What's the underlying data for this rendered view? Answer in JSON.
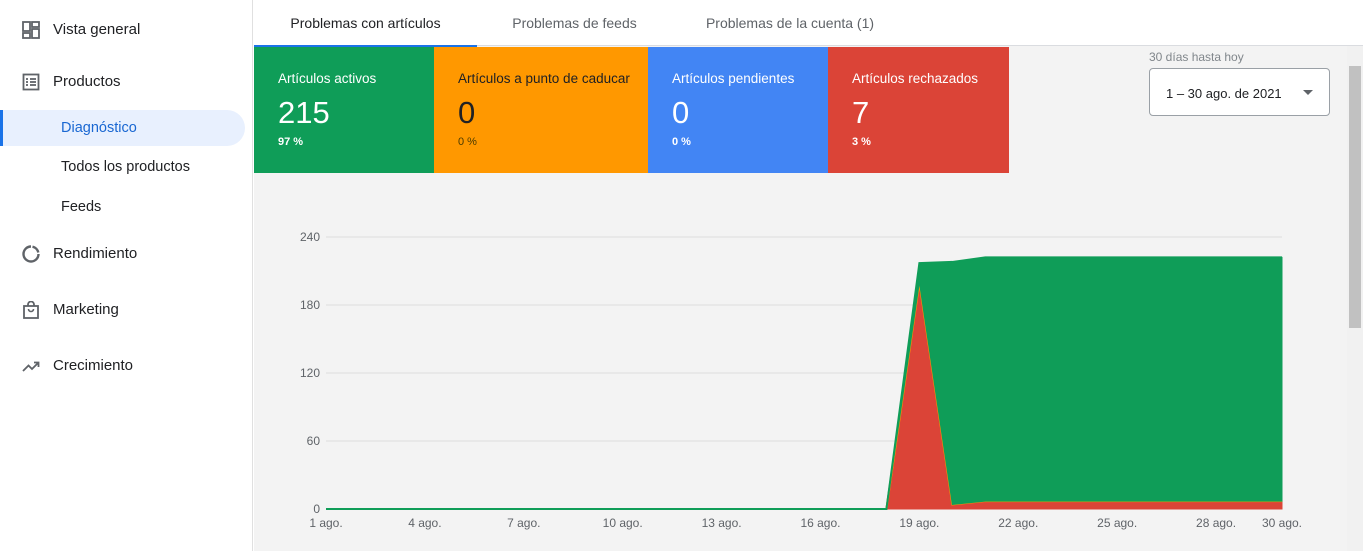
{
  "sidebar": {
    "items": [
      {
        "label": "Vista general",
        "icon": "dashboard-icon"
      },
      {
        "label": "Productos",
        "icon": "list-icon"
      },
      {
        "label": "Diagnóstico",
        "active": true
      },
      {
        "label": "Todos los productos"
      },
      {
        "label": "Feeds"
      },
      {
        "label": "Rendimiento",
        "icon": "donut-chart-icon"
      },
      {
        "label": "Marketing",
        "icon": "shopping-bag-icon"
      },
      {
        "label": "Crecimiento",
        "icon": "trending-up-icon"
      }
    ]
  },
  "tabs": [
    {
      "label": "Problemas con artículos",
      "active": true
    },
    {
      "label": "Problemas de feeds"
    },
    {
      "label": "Problemas de la cuenta (1)"
    }
  ],
  "cards": [
    {
      "title": "Artículos activos",
      "value": "215",
      "percent": "97 %",
      "color": "#0f9d58"
    },
    {
      "title": "Artículos a punto de caducar",
      "value": "0",
      "percent": "0 %",
      "color": "#ff9800"
    },
    {
      "title": "Artículos pendientes",
      "value": "0",
      "percent": "0 %",
      "color": "#4285f4"
    },
    {
      "title": "Artículos rechazados",
      "value": "7",
      "percent": "3 %",
      "color": "#db4437"
    }
  ],
  "date_range": {
    "label": "30 días hasta hoy",
    "value": "1 – 30 ago. de 2021"
  },
  "chart_data": {
    "type": "area",
    "x_labels": [
      "1 ago.",
      "4 ago.",
      "7 ago.",
      "10 ago.",
      "13 ago.",
      "16 ago.",
      "19 ago.",
      "22 ago.",
      "25 ago.",
      "28 ago.",
      "30 ago."
    ],
    "y_ticks": [
      0,
      60,
      120,
      180,
      240
    ],
    "ylim": [
      0,
      240
    ],
    "x": [
      "1 ago.",
      "2 ago.",
      "3 ago.",
      "4 ago.",
      "5 ago.",
      "6 ago.",
      "7 ago.",
      "8 ago.",
      "9 ago.",
      "10 ago.",
      "11 ago.",
      "12 ago.",
      "13 ago.",
      "14 ago.",
      "15 ago.",
      "16 ago.",
      "17 ago.",
      "18 ago.",
      "19 ago.",
      "20 ago.",
      "21 ago.",
      "22 ago.",
      "23 ago.",
      "24 ago.",
      "25 ago.",
      "26 ago.",
      "27 ago.",
      "28 ago.",
      "29 ago.",
      "30 ago."
    ],
    "series": [
      {
        "color": "#db4437",
        "values": [
          0,
          0,
          0,
          0,
          0,
          0,
          0,
          0,
          0,
          0,
          0,
          0,
          0,
          0,
          0,
          0,
          0,
          0,
          200,
          4,
          7,
          7,
          7,
          7,
          7,
          7,
          7,
          7,
          7,
          7
        ]
      },
      {
        "color": "#ff9800",
        "values": [
          0,
          0,
          0,
          0,
          0,
          0,
          0,
          0,
          0,
          0,
          0,
          0,
          0,
          0,
          0,
          0,
          0,
          0,
          0,
          0,
          0,
          0,
          0,
          0,
          0,
          0,
          0,
          0,
          0,
          0
        ]
      },
      {
        "color": "#0f9d58",
        "values": [
          0,
          0,
          0,
          0,
          0,
          0,
          0,
          0,
          0,
          0,
          0,
          0,
          0,
          0,
          0,
          0,
          0,
          0,
          17,
          214,
          215,
          215,
          215,
          215,
          215,
          215,
          215,
          215,
          215,
          215
        ]
      }
    ],
    "grid": true,
    "legend": "none"
  }
}
